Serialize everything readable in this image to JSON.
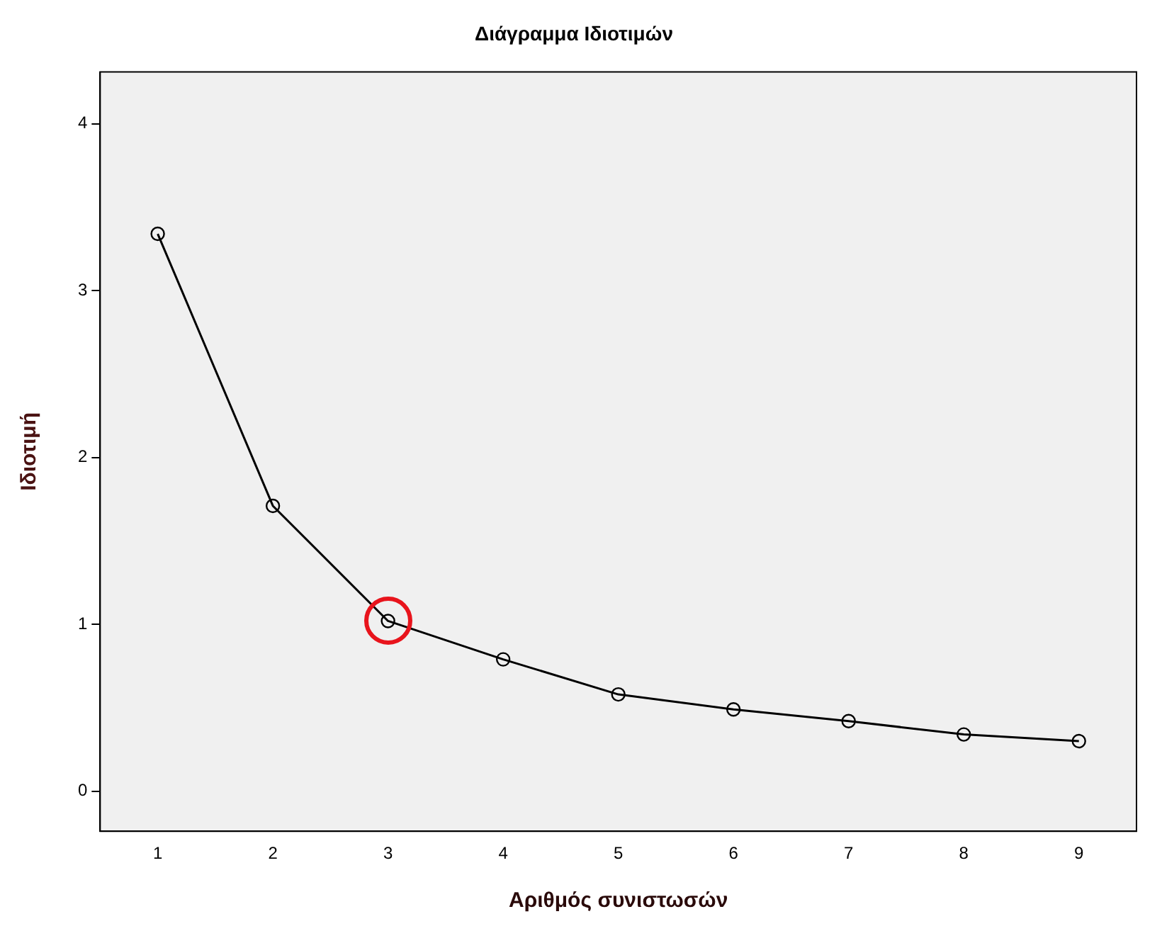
{
  "chart_data": {
    "type": "line",
    "title": "Διάγραμμα Ιδιοτιμών",
    "xlabel": "Αριθμός συνιστωσών",
    "ylabel": "Ιδιοτιμή",
    "categories": [
      "1",
      "2",
      "3",
      "4",
      "5",
      "6",
      "7",
      "8",
      "9"
    ],
    "series": [
      {
        "color": "#000000",
        "values": [
          3.34,
          1.71,
          1.02,
          0.79,
          0.58,
          0.49,
          0.42,
          0.34,
          0.3
        ]
      }
    ],
    "ylim": [
      -0.24,
      4.31
    ],
    "yticks": [
      0,
      1,
      2,
      3,
      4
    ],
    "grid": false,
    "legend": false,
    "marker": "circle",
    "line_style": "solid"
  }
}
